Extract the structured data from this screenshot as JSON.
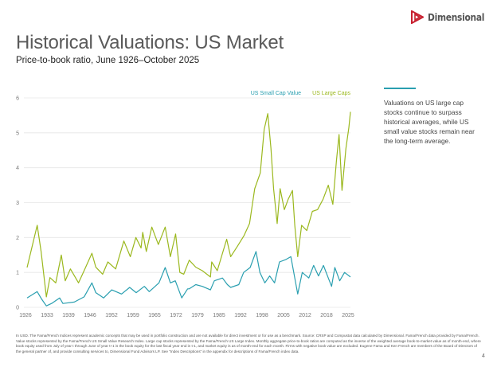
{
  "brand": {
    "name": "Dimensional",
    "logo_color": "#c8202f"
  },
  "header": {
    "title": "Historical Valuations: US Market",
    "subtitle": "Price-to-book ratio, June 1926–October 2025"
  },
  "sidebar": {
    "text": "Valuations on US large cap stocks continue to surpass historical averages, while US small value stocks remain near the long-term average.",
    "accent": "#2a9fb0"
  },
  "footnote": "In USD. The Fama/French Indices represent academic concepts that may be used in portfolio construction and are not available for direct investment or for use as a benchmark. Source: CRSP and Compustat data calculated by Dimensional. Fama/French data provided by Fama/French. Value stocks represented by the Fama/French US Small Value Research Index. Large cap stocks represented by the Fama/French US Large Index. Monthly aggregate price-to-book ratios are computed as the inverse of the weighted average book-to-market value as of month-end, where book equity used from July of year t through June of year t+1 is the book equity for the last fiscal year end in t-1, and market equity is as of month-end for each month. Firms with negative book value are excluded. Eugene Fama and Ken French are members of the Board of Directors of the general partner of, and provide consulting services to, Dimensional Fund Advisors LP. See \"Index Descriptions\" in the appendix for descriptions of Fama/French index data.",
  "page_number": "4",
  "chart_data": {
    "type": "line",
    "title": "",
    "xlabel": "",
    "ylabel": "",
    "xlim": [
      1926,
      2025.8
    ],
    "ylim": [
      0,
      6
    ],
    "x_ticks": [
      "1926",
      "1933",
      "1939",
      "1946",
      "1952",
      "1959",
      "1965",
      "1972",
      "1979",
      "1985",
      "1992",
      "1998",
      "2005",
      "2012",
      "2018",
      "2025"
    ],
    "y_ticks": [
      "0",
      "1",
      "2",
      "3",
      "4",
      "5",
      "6"
    ],
    "grid": true,
    "legend_position": "top-right",
    "series": [
      {
        "name": "US Small Cap Value",
        "color": "#2a9fb0",
        "x": [
          1926.5,
          1929.6,
          1931,
          1932.4,
          1934,
          1936.5,
          1937.5,
          1941,
          1944,
          1946.4,
          1947.6,
          1950,
          1952.5,
          1955.5,
          1958,
          1960,
          1962.5,
          1964,
          1967,
          1968.9,
          1970.5,
          1972,
          1974,
          1975.8,
          1976.3,
          1978.3,
          1980.3,
          1982.8,
          1984,
          1986.5,
          1988,
          1989,
          1991.5,
          1993,
          1995,
          1996.8,
          1998,
          1999.5,
          2001,
          2002.5,
          2004,
          2006,
          2007.5,
          2008.7,
          2009.6,
          2011,
          2013,
          2014.5,
          2016,
          2017.5,
          2019,
          2020,
          2021,
          2022.5,
          2024,
          2025.8
        ],
        "y": [
          0.27,
          0.45,
          0.23,
          0.04,
          0.11,
          0.27,
          0.11,
          0.15,
          0.3,
          0.7,
          0.42,
          0.27,
          0.5,
          0.38,
          0.57,
          0.42,
          0.6,
          0.45,
          0.7,
          1.14,
          0.7,
          0.76,
          0.27,
          0.53,
          0.53,
          0.65,
          0.6,
          0.5,
          0.76,
          0.84,
          0.65,
          0.57,
          0.65,
          1.0,
          1.14,
          1.6,
          1.0,
          0.7,
          0.9,
          0.7,
          1.3,
          1.37,
          1.45,
          0.84,
          0.38,
          1.0,
          0.84,
          1.2,
          0.9,
          1.2,
          0.84,
          0.6,
          1.14,
          0.76,
          1.0,
          0.87
        ]
      },
      {
        "name": "US Large Caps",
        "color": "#9bb81e",
        "x": [
          1926.5,
          1929.6,
          1930.8,
          1932.4,
          1933.5,
          1935.3,
          1937,
          1938.2,
          1939.8,
          1942.3,
          1944,
          1946.4,
          1947.6,
          1949.7,
          1951.3,
          1953.7,
          1956.2,
          1958.2,
          1959.9,
          1961.5,
          1962,
          1963.1,
          1964.8,
          1966.8,
          1968.9,
          1970.5,
          1972.1,
          1973.4,
          1974.6,
          1976.3,
          1978.3,
          1980.3,
          1982.8,
          1983.2,
          1984.9,
          1987.8,
          1989,
          1991.1,
          1993.1,
          1994.8,
          1996.4,
          1998.1,
          1999.3,
          2000.4,
          2001.4,
          2002.2,
          2003.3,
          2004.2,
          2005.5,
          2006.7,
          2008,
          2008.7,
          2009.6,
          2010.8,
          2012.4,
          2014.1,
          2015.7,
          2017.4,
          2019,
          2020.4,
          2021.5,
          2022.3,
          2023.2,
          2024.4,
          2025.3,
          2025.8
        ],
        "y": [
          1.14,
          2.35,
          1.6,
          0.3,
          0.85,
          0.7,
          1.5,
          0.76,
          1.1,
          0.7,
          1.05,
          1.55,
          1.15,
          0.95,
          1.3,
          1.1,
          1.9,
          1.45,
          2.0,
          1.7,
          2.15,
          1.6,
          2.3,
          1.8,
          2.3,
          1.45,
          2.1,
          1.0,
          0.95,
          1.35,
          1.15,
          1.05,
          0.87,
          1.3,
          1.05,
          1.95,
          1.45,
          1.75,
          2.05,
          2.4,
          3.4,
          3.85,
          5.1,
          5.55,
          4.55,
          3.4,
          2.4,
          3.4,
          2.8,
          3.1,
          3.35,
          2.35,
          1.45,
          2.35,
          2.2,
          2.75,
          2.8,
          3.1,
          3.5,
          2.95,
          4.2,
          4.95,
          3.35,
          4.55,
          5.15,
          5.6
        ]
      }
    ]
  }
}
